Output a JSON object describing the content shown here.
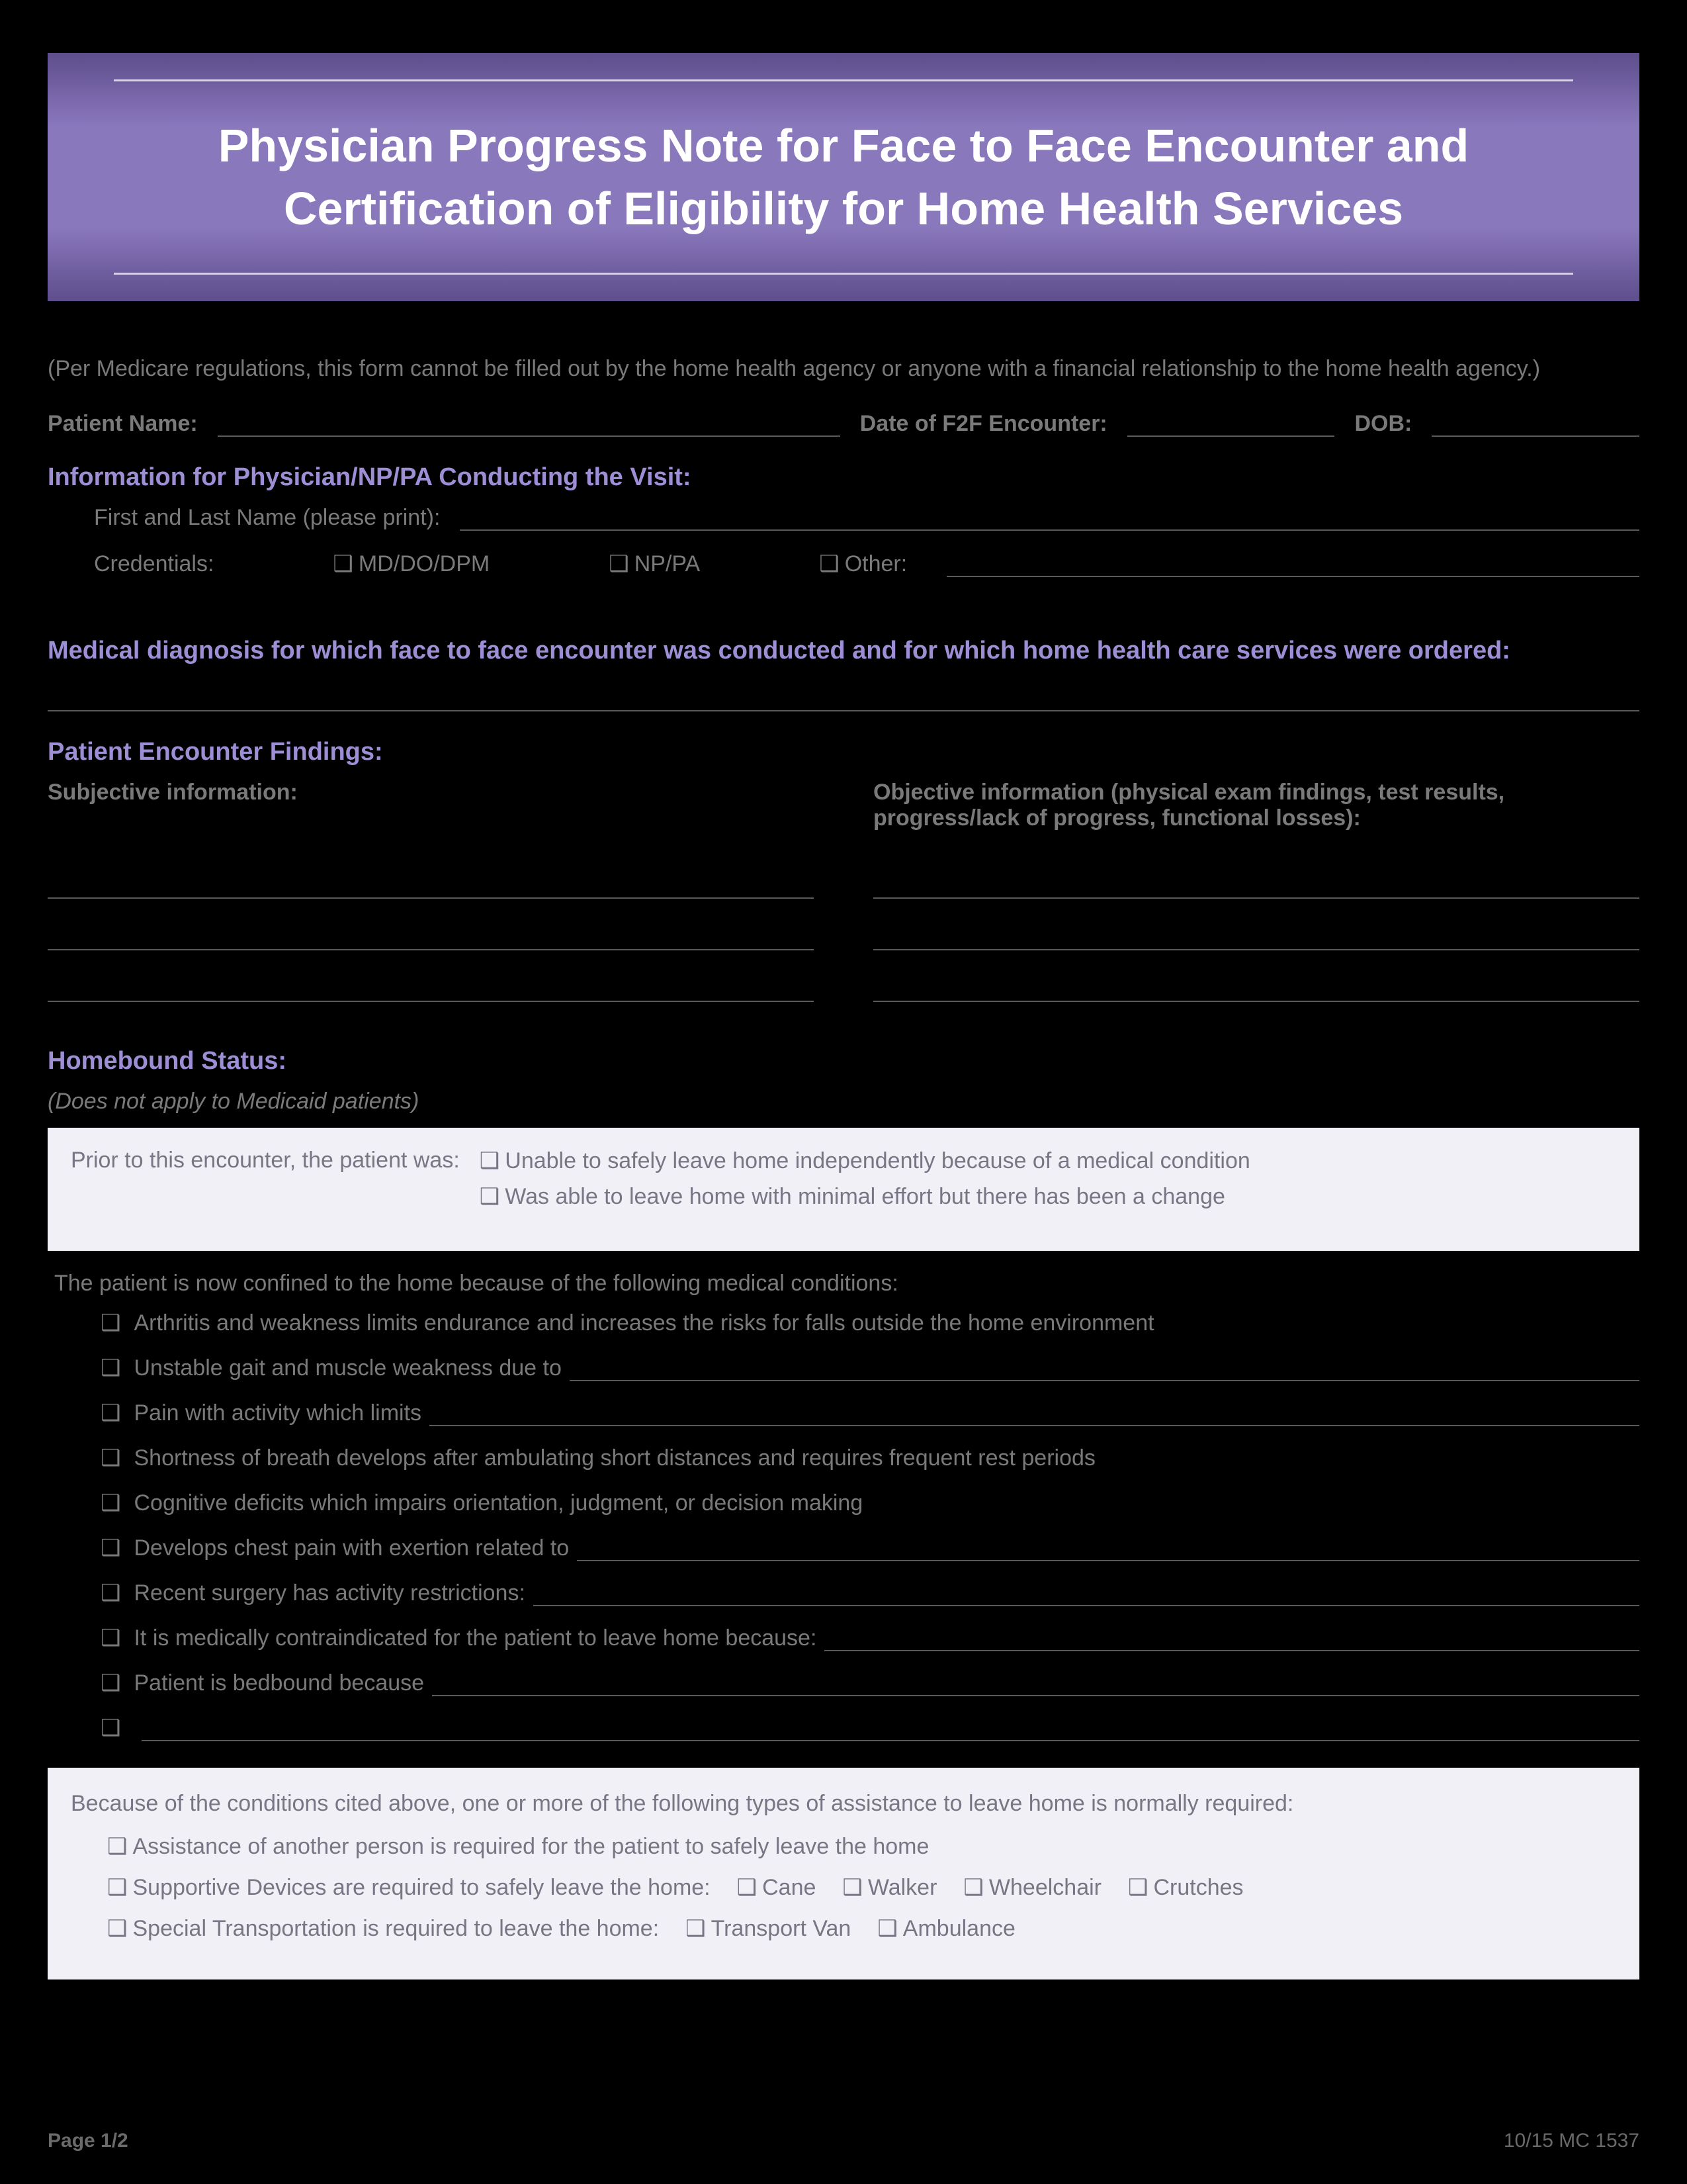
{
  "banner": {
    "title": "Physician Progress Note for Face to Face Encounter and Certification of Eligibility for Home Health Services"
  },
  "disclaimer": "(Per Medicare regulations, this form cannot be filled out by the home health agency or anyone with a financial relationship to the home health agency.)",
  "patient_row": {
    "name_label": "Patient Name:",
    "f2f_label": "Date of F2F Encounter:",
    "dob_label": "DOB:"
  },
  "physician_info": {
    "heading": "Information for Physician/NP/PA Conducting the Visit:",
    "name_label": "First and Last Name (please print):",
    "cred_label": "Credentials:",
    "cred_options": [
      "MD/DO/DPM",
      "NP/PA",
      "Other:"
    ]
  },
  "diagnosis_heading": "Medical diagnosis for which face to face encounter was conducted and for which home health care services were ordered:",
  "findings": {
    "heading": "Patient Encounter Findings:",
    "subjective_label": "Subjective information:",
    "objective_label": "Objective information (physical exam findings, test results, progress/lack of progress, functional losses):"
  },
  "homebound": {
    "heading": "Homebound Status:",
    "note": "(Does not apply to Medicaid patients)",
    "prior_label": "Prior to this encounter, the patient was:",
    "prior_options": [
      "Unable to safely leave home independently because of a medical condition",
      "Was able to leave home with minimal effort but there has been a change"
    ],
    "confined_intro": "The patient is now confined to the home because of the following medical conditions:",
    "conditions": [
      {
        "text": "Arthritis and weakness limits endurance and increases the risks for falls outside the home environment",
        "fill": false
      },
      {
        "text": "Unstable gait and muscle weakness due to",
        "fill": true
      },
      {
        "text": "Pain with activity which limits",
        "fill": true
      },
      {
        "text": "Shortness of breath develops after ambulating short distances and requires frequent rest periods",
        "fill": false
      },
      {
        "text": "Cognitive deficits which impairs orientation, judgment, or decision making",
        "fill": false
      },
      {
        "text": "Develops chest pain with exertion related to",
        "fill": true
      },
      {
        "text": "Recent surgery has activity restrictions:",
        "fill": true
      },
      {
        "text": "It is medically contraindicated for the patient to leave home because:",
        "fill": true
      },
      {
        "text": "Patient is bedbound because",
        "fill": true
      },
      {
        "text": "",
        "fill": true
      }
    ]
  },
  "assistance": {
    "intro": "Because of the conditions cited above, one or more of the following types of assistance to leave home is normally required:",
    "items": [
      {
        "text": "Assistance of another person is required for the patient to safely leave the home",
        "sub": []
      },
      {
        "text": "Supportive Devices are required to safely leave the home:",
        "sub": [
          "Cane",
          "Walker",
          "Wheelchair",
          "Crutches"
        ]
      },
      {
        "text": "Special Transportation is required to leave the home:",
        "sub": [
          "Transport Van",
          "Ambulance"
        ]
      }
    ]
  },
  "footer": {
    "page": "Page 1/2",
    "code": "10/15  MC 1537"
  },
  "colors": {
    "banner_bg_mid": "#8a78bd",
    "banner_bg_edge": "#5e4e8c",
    "heading": "#9e8ed6",
    "body_text": "#7a7a7a",
    "lightbox_bg": "#f2f0f7",
    "lightbox_text": "#787684",
    "line": "#5a5a5a",
    "page_bg": "#000000"
  }
}
